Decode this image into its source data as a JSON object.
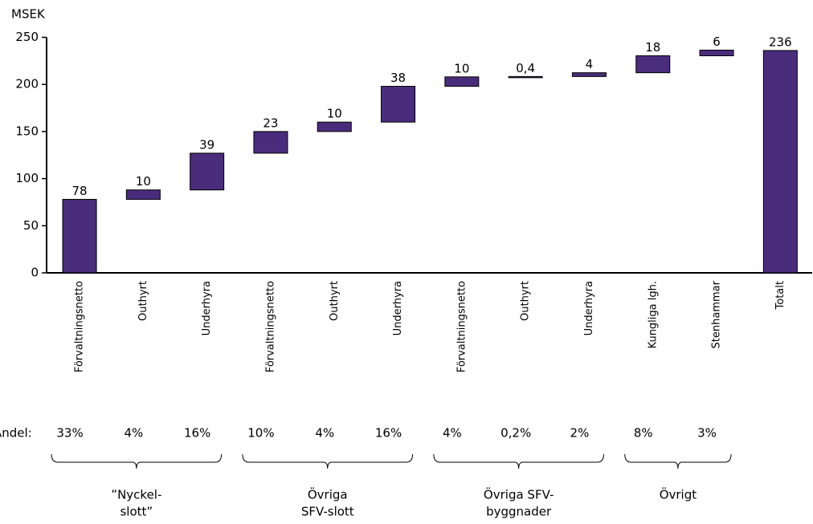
{
  "chart_data": {
    "type": "waterfall",
    "y_axis_label": "MSEK",
    "categories": [
      "Förvaltningsnetto",
      "Outhyrt",
      "Underhyra",
      "Förvaltningsnetto",
      "Outhyrt",
      "Underhyra",
      "Förvaltningsnetto",
      "Outhyrt",
      "Underhyra",
      "Kungliga lgh.",
      "Stenhammar",
      "Totalt"
    ],
    "values": [
      78,
      10,
      39,
      23,
      10,
      38,
      10,
      0.4,
      4,
      18,
      6,
      236
    ],
    "value_labels": [
      "78",
      "10",
      "39",
      "23",
      "10",
      "38",
      "10",
      "0,4",
      "4",
      "18",
      "6",
      "236"
    ],
    "last_is_total": true,
    "color": "#4a2c7c",
    "ylim": [
      0,
      250
    ],
    "yticks": [
      0,
      50,
      100,
      150,
      200,
      250
    ],
    "share_title": "Andel:",
    "shares": [
      {
        "value": 33,
        "label": "33%"
      },
      {
        "value": 4,
        "label": "4%"
      },
      {
        "value": 16,
        "label": "16%"
      },
      {
        "value": 10,
        "label": "10%"
      },
      {
        "value": 4,
        "label": "4%"
      },
      {
        "value": 16,
        "label": "16%"
      },
      {
        "value": 4,
        "label": "4%"
      },
      {
        "value": 0.2,
        "label": "0,2%"
      },
      {
        "value": 2,
        "label": "2%"
      },
      {
        "value": 8,
        "label": "8%"
      },
      {
        "value": 3,
        "label": "3%"
      }
    ],
    "groups": [
      {
        "lines": [
          "”Nyckel-",
          "slott”"
        ],
        "size": 3
      },
      {
        "lines": [
          "Övriga",
          "SFV-slott"
        ],
        "size": 3
      },
      {
        "lines": [
          "Övriga SFV-",
          "byggnader"
        ],
        "size": 3
      },
      {
        "lines": [
          "Övrigt"
        ],
        "size": 2
      }
    ]
  }
}
